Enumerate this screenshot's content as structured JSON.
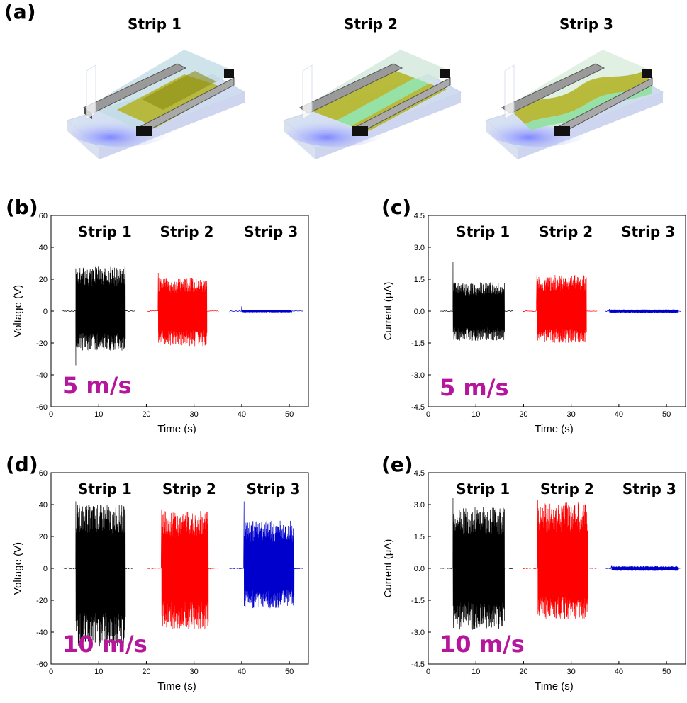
{
  "panel_a": {
    "label": "(a)",
    "strips": [
      {
        "title": "Strip 1",
        "membrane_color": "#b5b52a",
        "variant": "flat"
      },
      {
        "title": "Strip 2",
        "membrane_color": "#b5b52a",
        "variant": "split"
      },
      {
        "title": "Strip 3",
        "membrane_color": "#b5b52a",
        "variant": "wavy"
      }
    ]
  },
  "colors": {
    "strip1": "#000000",
    "strip2": "#ff0000",
    "strip3": "#0000cc",
    "speed": "#b5169b"
  },
  "chart_data": [
    {
      "id": "b",
      "label": "(b)",
      "type": "line",
      "speed": "5 m/s",
      "xlabel": "Time (s)",
      "ylabel": "Voltage (V)",
      "xlim": [
        0,
        54
      ],
      "ylim": [
        -60,
        60
      ],
      "xticks": [
        "0",
        "10",
        "20",
        "30",
        "40",
        "50"
      ],
      "xtick_values": [
        0,
        10,
        20,
        30,
        40,
        50
      ],
      "yticks": [
        "60",
        "40",
        "20",
        "0",
        "-20",
        "-40",
        "-60"
      ],
      "ytick_values": [
        60,
        40,
        20,
        0,
        -20,
        -40,
        -60
      ],
      "series": [
        {
          "name": "Strip 1",
          "color": "#000000",
          "x_start": 2.5,
          "burst_start": 5.2,
          "burst_end": 15.6,
          "x_end": 17.8,
          "pos_amp": 28,
          "neg_amp": -25,
          "spike": -34
        },
        {
          "name": "Strip 2",
          "color": "#ff0000",
          "x_start": 20.2,
          "burst_start": 22.5,
          "burst_end": 32.7,
          "x_end": 35.2,
          "pos_amp": 21,
          "neg_amp": -22,
          "spike": 24
        },
        {
          "name": "Strip 3",
          "color": "#0000cc",
          "x_start": 37.5,
          "burst_start": 40.0,
          "burst_end": 50.5,
          "x_end": 53.0,
          "pos_amp": 0.8,
          "neg_amp": -0.8,
          "spike": 3
        }
      ]
    },
    {
      "id": "c",
      "label": "(c)",
      "type": "line",
      "speed": "5 m/s",
      "xlabel": "Time (s)",
      "ylabel": "Current (μA)",
      "xlim": [
        0,
        54
      ],
      "ylim": [
        -4.5,
        4.5
      ],
      "xticks": [
        "0",
        "10",
        "20",
        "30",
        "40",
        "50"
      ],
      "xtick_values": [
        0,
        10,
        20,
        30,
        40,
        50
      ],
      "yticks": [
        "4.5",
        "3.0",
        "1.5",
        "0.0",
        "-1.5",
        "-3.0",
        "-4.5"
      ],
      "ytick_values": [
        4.5,
        3.0,
        1.5,
        0.0,
        -1.5,
        -3.0,
        -4.5
      ],
      "series": [
        {
          "name": "Strip 1",
          "color": "#000000",
          "x_start": 2.5,
          "burst_start": 5.2,
          "burst_end": 16.0,
          "x_end": 18.0,
          "pos_amp": 1.35,
          "neg_amp": -1.4,
          "spike": 2.3
        },
        {
          "name": "Strip 2",
          "color": "#ff0000",
          "x_start": 20.0,
          "burst_start": 22.8,
          "burst_end": 33.2,
          "x_end": 35.5,
          "pos_amp": 1.7,
          "neg_amp": -1.5,
          "spike": 1.7
        },
        {
          "name": "Strip 3",
          "color": "#0000cc",
          "x_start": 37.2,
          "burst_start": 38.0,
          "burst_end": 52.5,
          "x_end": 53.0,
          "pos_amp": 0.08,
          "neg_amp": -0.08,
          "spike": 0.1
        }
      ]
    },
    {
      "id": "d",
      "label": "(d)",
      "type": "line",
      "speed": "10 m/s",
      "xlabel": "Time (s)",
      "ylabel": "Voltage (V)",
      "xlim": [
        0,
        54
      ],
      "ylim": [
        -60,
        60
      ],
      "xticks": [
        "0",
        "10",
        "20",
        "30",
        "40",
        "50"
      ],
      "xtick_values": [
        0,
        10,
        20,
        30,
        40,
        50
      ],
      "yticks": [
        "60",
        "40",
        "20",
        "0",
        "-20",
        "-40",
        "-60"
      ],
      "ytick_values": [
        60,
        40,
        20,
        0,
        -20,
        -40,
        -60
      ],
      "series": [
        {
          "name": "Strip 1",
          "color": "#000000",
          "x_start": 2.5,
          "burst_start": 5.2,
          "burst_end": 15.6,
          "x_end": 17.8,
          "pos_amp": 40,
          "neg_amp": -50,
          "spike": 42
        },
        {
          "name": "Strip 2",
          "color": "#ff0000",
          "x_start": 20.2,
          "burst_start": 23.2,
          "burst_end": 33.0,
          "x_end": 35.2,
          "pos_amp": 36,
          "neg_amp": -38,
          "spike": 37
        },
        {
          "name": "Strip 3",
          "color": "#0000cc",
          "x_start": 37.5,
          "burst_start": 40.5,
          "burst_end": 51.0,
          "x_end": 53.0,
          "pos_amp": 30,
          "neg_amp": -25,
          "spike": 42
        }
      ]
    },
    {
      "id": "e",
      "label": "(e)",
      "type": "line",
      "speed": "10 m/s",
      "xlabel": "Time (s)",
      "ylabel": "Current (μA)",
      "xlim": [
        0,
        54
      ],
      "ylim": [
        -4.5,
        4.5
      ],
      "xticks": [
        "0",
        "10",
        "20",
        "30",
        "40",
        "50"
      ],
      "xtick_values": [
        0,
        10,
        20,
        30,
        40,
        50
      ],
      "yticks": [
        "4.5",
        "3.0",
        "1.5",
        "0.0",
        "-1.5",
        "-3.0",
        "-4.5"
      ],
      "ytick_values": [
        4.5,
        3.0,
        1.5,
        0.0,
        -1.5,
        -3.0,
        -4.5
      ],
      "series": [
        {
          "name": "Strip 1",
          "color": "#000000",
          "x_start": 2.5,
          "burst_start": 5.2,
          "burst_end": 16.0,
          "x_end": 18.0,
          "pos_amp": 2.9,
          "neg_amp": -2.9,
          "spike": 3.3
        },
        {
          "name": "Strip 2",
          "color": "#ff0000",
          "x_start": 20.0,
          "burst_start": 23.0,
          "burst_end": 33.5,
          "x_end": 35.5,
          "pos_amp": 3.1,
          "neg_amp": -2.4,
          "spike": 3.2
        },
        {
          "name": "Strip 3",
          "color": "#0000cc",
          "x_start": 37.2,
          "burst_start": 38.5,
          "burst_end": 52.5,
          "x_end": 53.0,
          "pos_amp": 0.1,
          "neg_amp": -0.12,
          "spike": 0.15
        }
      ]
    }
  ]
}
